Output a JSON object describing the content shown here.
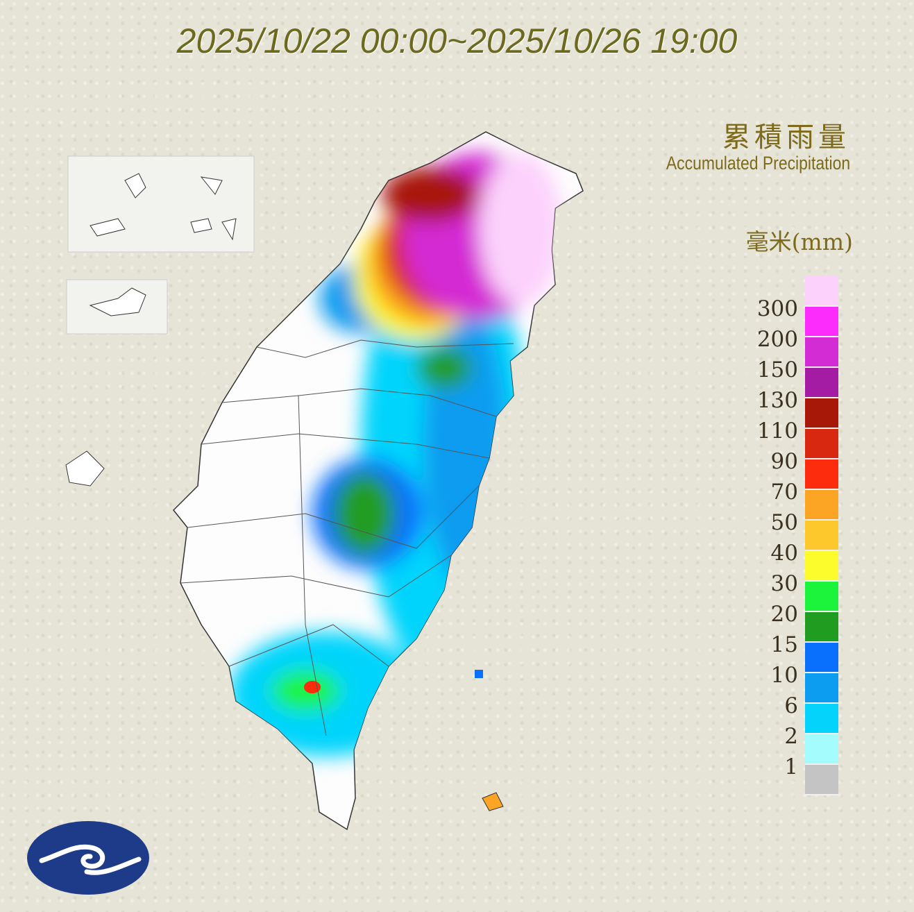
{
  "title": "2025/10/22 00:00~2025/10/26 19:00",
  "legend": {
    "title_zh": "累積雨量",
    "title_en": "Accumulated Precipitation",
    "unit": "毫米(mm)",
    "labels": [
      "300",
      "200",
      "150",
      "130",
      "110",
      "90",
      "70",
      "50",
      "40",
      "30",
      "20",
      "15",
      "10",
      "6",
      "2",
      "1"
    ],
    "colors": [
      "#fcd2fc",
      "#fc2cfc",
      "#d42cd4",
      "#a41ca4",
      "#a81808",
      "#d82810",
      "#fc2c0c",
      "#fca424",
      "#fcc82c",
      "#fcfc2c",
      "#1cf43c",
      "#209c20",
      "#0870fc",
      "#0c9cf0",
      "#04d4fc",
      "#a4fcfc",
      "#c4c4c4"
    ]
  },
  "map": {
    "region": "Taiwan",
    "logo": "central-weather-administration-logo"
  }
}
